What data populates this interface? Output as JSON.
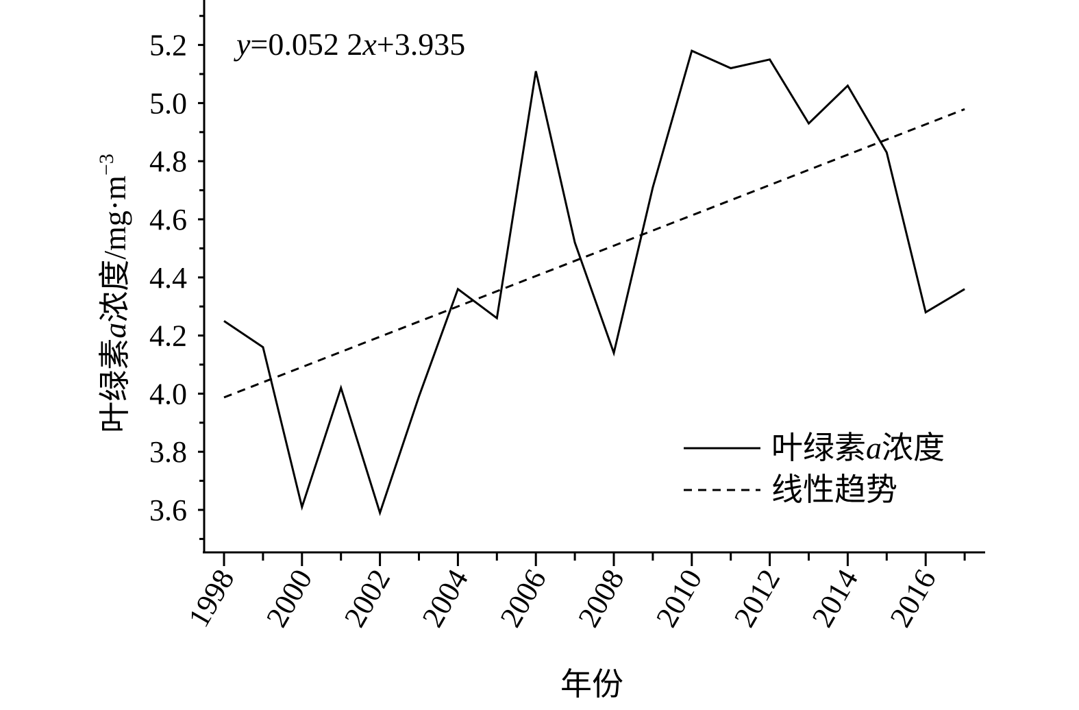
{
  "chart_data": {
    "type": "line",
    "title": "",
    "xlabel": "年份",
    "ylabel": "叶绿素a浓度/mg·m⁻³",
    "ylabel_parts": {
      "pre": "叶绿素",
      "italic": "a",
      "mid": "浓度/mg·m",
      "sup": "−3"
    },
    "xlim": [
      1997.5,
      2017.5
    ],
    "ylim": [
      3.45,
      5.35
    ],
    "y_ticks": [
      "3.6",
      "3.8",
      "4.0",
      "4.2",
      "4.4",
      "4.6",
      "4.8",
      "5.0",
      "5.2"
    ],
    "x_ticks": [
      "1998",
      "2000",
      "2002",
      "2004",
      "2006",
      "2008",
      "2010",
      "2012",
      "2014",
      "2016"
    ],
    "grid": false,
    "legend_position": "bottom-right",
    "annotation": {
      "y_var": "y",
      "eq_mid": "=0.052 2",
      "x_var": "x",
      "eq_end": "+3.935"
    },
    "series": [
      {
        "name": "叶绿素a浓度",
        "name_parts": {
          "pre": "叶绿素",
          "italic": "a",
          "post": "浓度"
        },
        "style": "solid",
        "x": [
          1998,
          1999,
          2000,
          2001,
          2002,
          2003,
          2004,
          2005,
          2006,
          2007,
          2008,
          2009,
          2010,
          2011,
          2012,
          2013,
          2014,
          2015,
          2016,
          2017
        ],
        "y": [
          4.25,
          4.16,
          3.61,
          4.02,
          3.59,
          3.99,
          4.36,
          4.26,
          5.11,
          4.52,
          4.14,
          4.71,
          5.18,
          5.12,
          5.15,
          4.93,
          5.06,
          4.83,
          4.28,
          4.36
        ]
      },
      {
        "name": "线性趋势",
        "style": "dashed",
        "x": [
          1998,
          2017
        ],
        "y": [
          3.987,
          4.979
        ]
      }
    ]
  }
}
